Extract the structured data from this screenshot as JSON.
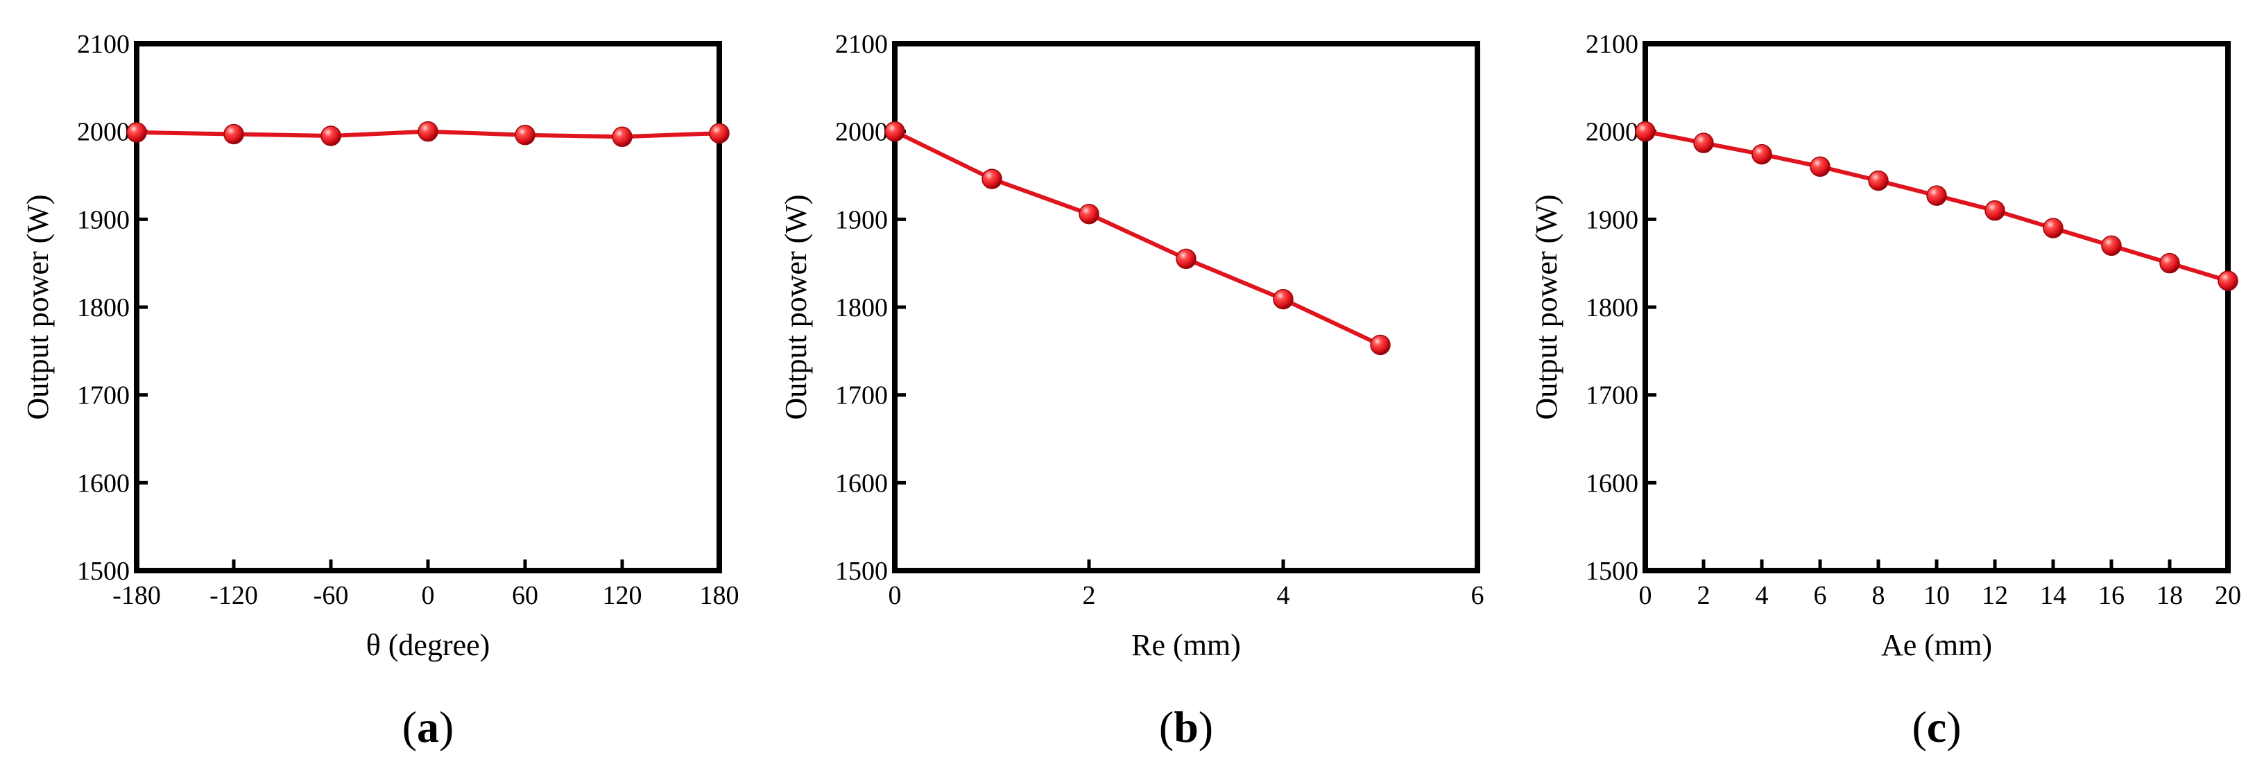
{
  "chart_data": [
    {
      "type": "line",
      "panel_label": "(a)",
      "xlabel": "θ (degree)",
      "ylabel": "Output power (W)",
      "xlim": [
        -180,
        180
      ],
      "ylim": [
        1500,
        2100
      ],
      "xticks": [
        -180,
        -120,
        -60,
        0,
        60,
        120,
        180
      ],
      "yticks": [
        1500,
        1600,
        1700,
        1800,
        1900,
        2000,
        2100
      ],
      "series": [
        {
          "x": [
            -180,
            -120,
            -60,
            0,
            60,
            120,
            180
          ],
          "values": [
            1999,
            1997,
            1995,
            2000,
            1996,
            1994,
            1998
          ]
        }
      ],
      "color": "#e0141e",
      "grid": false
    },
    {
      "type": "line",
      "panel_label": "(b)",
      "xlabel": "Re (mm)",
      "ylabel": "Output power (W)",
      "xlim": [
        0,
        6
      ],
      "ylim": [
        1500,
        2100
      ],
      "xticks": [
        0,
        2,
        4,
        6
      ],
      "yticks": [
        1500,
        1600,
        1700,
        1800,
        1900,
        2000,
        2100
      ],
      "series": [
        {
          "x": [
            0,
            1,
            2,
            3,
            4,
            5
          ],
          "values": [
            2000,
            1946,
            1906,
            1855,
            1809,
            1757
          ]
        }
      ],
      "color": "#e0141e",
      "grid": false
    },
    {
      "type": "line",
      "panel_label": "(c)",
      "xlabel": "Ae (mm)",
      "ylabel": "Output power (W)",
      "xlim": [
        0,
        20
      ],
      "ylim": [
        1500,
        2100
      ],
      "xticks": [
        0,
        2,
        4,
        6,
        8,
        10,
        12,
        14,
        16,
        18,
        20
      ],
      "yticks": [
        1500,
        1600,
        1700,
        1800,
        1900,
        2000,
        2100
      ],
      "series": [
        {
          "x": [
            0,
            2,
            4,
            6,
            8,
            10,
            12,
            14,
            16,
            18,
            20
          ],
          "values": [
            2000,
            1987,
            1974,
            1960,
            1944,
            1927,
            1910,
            1890,
            1870,
            1850,
            1830
          ]
        }
      ],
      "color": "#e0141e",
      "grid": false
    }
  ]
}
